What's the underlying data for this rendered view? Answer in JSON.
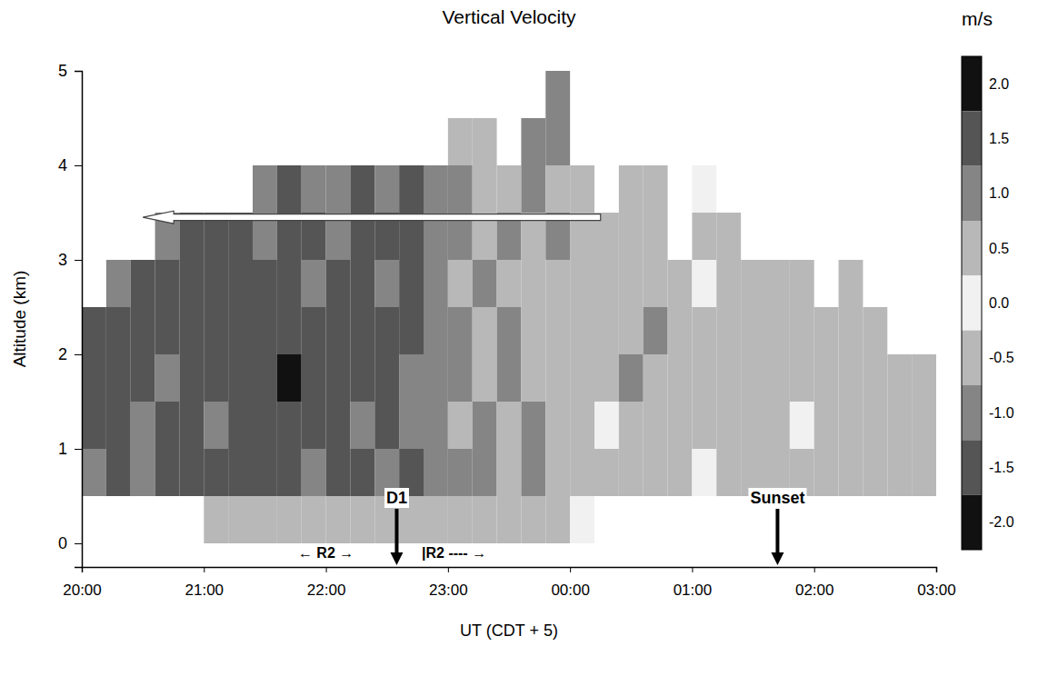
{
  "chart_data": {
    "type": "heatmap",
    "title": "Vertical Velocity",
    "x_label": "UT (CDT + 5)",
    "y_label": "Altitude (km)",
    "xlim": [
      20,
      27
    ],
    "xticks": [
      {
        "value": 20,
        "label": "20:00"
      },
      {
        "value": 21,
        "label": "21:00"
      },
      {
        "value": 22,
        "label": "22:00"
      },
      {
        "value": 23,
        "label": "23:00"
      },
      {
        "value": 24,
        "label": "00:00"
      },
      {
        "value": 25,
        "label": "01:00"
      },
      {
        "value": 26,
        "label": "02:00"
      },
      {
        "value": 27,
        "label": "03:00"
      }
    ],
    "ylim": [
      -0.25,
      5
    ],
    "yticks": [
      0,
      1,
      2,
      3,
      4,
      5
    ],
    "grid": false,
    "x_bins": [
      20,
      20.2,
      20.4,
      20.6,
      20.8,
      21,
      21.2,
      21.4,
      21.6,
      21.8,
      22,
      22.2,
      22.4,
      22.6,
      22.8,
      23,
      23.2,
      23.4,
      23.6,
      23.8,
      24,
      24.2,
      24.4,
      24.6,
      24.8,
      25,
      25.2,
      25.4,
      25.6,
      25.8,
      26,
      26.2,
      26.4,
      26.6,
      26.8,
      27
    ],
    "y_bins": [
      0,
      0.5,
      1,
      1.5,
      2,
      2.5,
      3,
      3.5,
      4,
      4.5,
      5
    ],
    "values": [
      [
        null,
        null,
        null,
        null,
        null,
        -0.6,
        0.7,
        -0.5,
        0.6,
        -0.4,
        0.5,
        -0.6,
        0.4,
        -0.5,
        0.3,
        -0.4,
        0.3,
        -0.3,
        0.4,
        -0.3,
        0.2,
        null,
        null,
        null,
        null,
        null,
        null,
        null,
        null,
        null,
        null,
        null,
        null,
        null,
        null
      ],
      [
        -1.2,
        1.4,
        -1.0,
        1.3,
        -1.5,
        1.6,
        -1.3,
        1.5,
        -1.6,
        1.2,
        -1.4,
        1.5,
        -1.1,
        1.3,
        -0.9,
        0.8,
        -1.0,
        0.7,
        -0.8,
        0.6,
        -0.5,
        0.3,
        -0.6,
        0.5,
        -0.4,
        0.2,
        -0.5,
        0.4,
        -0.3,
        0.6,
        -0.4,
        0.3,
        -0.6,
        0.5,
        -0.4
      ],
      [
        1.5,
        -1.3,
        1.2,
        -1.6,
        1.4,
        -1.2,
        1.7,
        -1.4,
        1.3,
        -1.5,
        1.6,
        -1.2,
        1.4,
        -1.0,
        1.1,
        -0.7,
        0.9,
        -0.6,
        0.8,
        -0.7,
        0.4,
        -0.2,
        0.5,
        -0.6,
        0.3,
        -0.4,
        0.6,
        -0.3,
        0.5,
        -0.2,
        0.4,
        -0.6,
        0.5,
        -0.7,
        0.6
      ],
      [
        -1.4,
        1.6,
        -1.5,
        1.2,
        -1.7,
        1.5,
        -1.6,
        1.3,
        -1.8,
        1.6,
        -1.3,
        1.7,
        -1.5,
        1.2,
        -0.8,
        1.0,
        -0.7,
        0.9,
        -0.6,
        0.7,
        -0.3,
        0.4,
        -0.8,
        0.6,
        -0.5,
        0.3,
        -0.4,
        0.5,
        -0.6,
        0.4,
        -0.5,
        0.3,
        -0.7,
        0.4,
        -0.5
      ],
      [
        1.6,
        -1.4,
        1.3,
        -1.5,
        1.7,
        -1.4,
        1.5,
        -1.7,
        1.4,
        -1.3,
        1.5,
        -1.6,
        1.3,
        -1.4,
        1.0,
        -0.8,
        0.7,
        -0.9,
        0.6,
        -0.5,
        0.5,
        -0.3,
        0.7,
        -0.8,
        0.4,
        -0.3,
        0.6,
        -0.5,
        0.4,
        -0.6,
        0.3,
        -0.5,
        0.4,
        null,
        null
      ],
      [
        null,
        -1.2,
        1.4,
        -1.3,
        1.5,
        -1.6,
        1.3,
        -1.5,
        1.6,
        -1.2,
        1.4,
        -1.5,
        1.2,
        -1.3,
        0.9,
        -0.7,
        0.8,
        -0.6,
        0.7,
        -0.5,
        0.4,
        -0.3,
        0.6,
        -0.7,
        0.5,
        -0.2,
        0.5,
        -0.4,
        0.3,
        -0.5,
        null,
        0.4,
        null,
        null,
        null
      ],
      [
        null,
        null,
        null,
        1.1,
        -1.4,
        1.3,
        -1.5,
        1.2,
        -1.6,
        1.4,
        -1.2,
        1.5,
        -1.4,
        1.3,
        -1.0,
        0.8,
        -0.7,
        0.9,
        -0.6,
        0.8,
        -0.5,
        0.3,
        -0.6,
        0.5,
        null,
        0.3,
        -0.4,
        null,
        null,
        null,
        null,
        null,
        null,
        null,
        null
      ],
      [
        null,
        null,
        null,
        null,
        null,
        null,
        null,
        -1.1,
        1.3,
        -1.2,
        1.2,
        -1.4,
        1.1,
        -1.3,
        0.9,
        -0.8,
        0.7,
        -0.6,
        0.9,
        -0.7,
        0.6,
        null,
        -0.5,
        0.4,
        null,
        0.2,
        null,
        null,
        null,
        null,
        null,
        null,
        null,
        null,
        null
      ],
      [
        null,
        null,
        null,
        null,
        null,
        null,
        null,
        null,
        null,
        null,
        null,
        null,
        null,
        null,
        null,
        0.6,
        -0.7,
        null,
        0.8,
        -1.2,
        null,
        null,
        null,
        null,
        null,
        null,
        null,
        null,
        null,
        null,
        null,
        null,
        null,
        null,
        null
      ],
      [
        null,
        null,
        null,
        null,
        null,
        null,
        null,
        null,
        null,
        null,
        null,
        null,
        null,
        null,
        null,
        null,
        null,
        null,
        null,
        1.0,
        null,
        null,
        null,
        null,
        null,
        null,
        null,
        null,
        null,
        null,
        null,
        null,
        null,
        null,
        null
      ]
    ],
    "colorbar": {
      "title": "m/s",
      "lim": [
        -2.25,
        2.25
      ],
      "ticks": [
        {
          "value": 2,
          "label": "2.0"
        },
        {
          "value": 1.5,
          "label": "1.5"
        },
        {
          "value": 1,
          "label": "1.0"
        },
        {
          "value": 0.5,
          "label": "0.5"
        },
        {
          "value": 0,
          "label": "0.0"
        },
        {
          "value": -0.5,
          "label": "-0.5"
        },
        {
          "value": -1,
          "label": "-1.0"
        },
        {
          "value": -1.5,
          "label": "-1.5"
        },
        {
          "value": -2,
          "label": "-2.0"
        }
      ]
    },
    "annotations": [
      {
        "text": "D1",
        "x": 22.58,
        "marker": "arrow"
      },
      {
        "text": "← R2 →",
        "x": 22.0
      },
      {
        "text": "|R2 ---- →",
        "x": 23.05
      },
      {
        "text": "Sunset",
        "x": 25.7,
        "marker": "arrow"
      },
      {
        "x": [
          24.25,
          20.5
        ],
        "y": 3.45,
        "marker": "arrow"
      }
    ]
  }
}
